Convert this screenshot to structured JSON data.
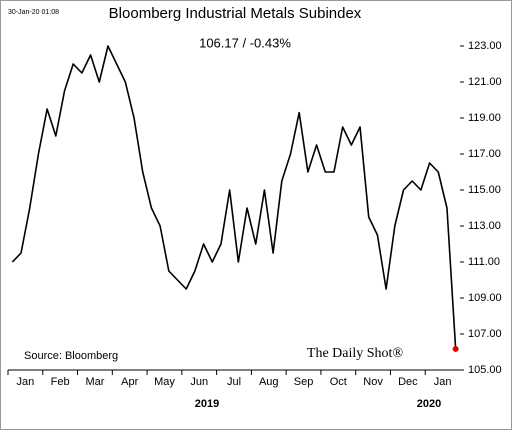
{
  "chart_data": {
    "type": "line",
    "title": "Bloomberg Industrial Metals Subindex",
    "timestamp": "30-Jan-20 01:08",
    "headline": "106.17  /  -0.43%",
    "source": "Source: Bloomberg",
    "brand": "The Daily Shot®",
    "year_labels": [
      "2019",
      "2020"
    ],
    "categories": [
      "Jan",
      null,
      null,
      null,
      "Feb",
      null,
      null,
      null,
      "Mar",
      null,
      null,
      null,
      "Apr",
      null,
      null,
      null,
      "May",
      null,
      null,
      null,
      "Jun",
      null,
      null,
      null,
      "Jul",
      null,
      null,
      null,
      "Aug",
      null,
      null,
      null,
      "Sep",
      null,
      null,
      null,
      "Oct",
      null,
      null,
      null,
      "Nov",
      null,
      null,
      null,
      "Dec",
      null,
      null,
      null,
      "Jan",
      null,
      null,
      null
    ],
    "series": [
      {
        "name": "Bloomberg Industrial Metals Subindex",
        "color": "#000000",
        "values": [
          111,
          111.5,
          114,
          117,
          119.5,
          118,
          120.5,
          122,
          121.5,
          122.5,
          121,
          123,
          122,
          121,
          119,
          116,
          114,
          113,
          110.5,
          110,
          109.5,
          110.5,
          112,
          111,
          112,
          115,
          111,
          114,
          112,
          115,
          111.5,
          115.5,
          117,
          119.3,
          116,
          117.5,
          116,
          116,
          118.5,
          117.5,
          118.5,
          113.5,
          112.5,
          109.5,
          113,
          115,
          115.5,
          115,
          116.5,
          116,
          114,
          106.17
        ]
      }
    ],
    "last_point_color": "#e00000",
    "ylim": [
      105,
      125
    ],
    "yticks": [
      {
        "value": 105,
        "label": "105.00"
      },
      {
        "value": 107,
        "label": "107.00"
      },
      {
        "value": 109,
        "label": "109.00"
      },
      {
        "value": 111,
        "label": "111.00"
      },
      {
        "value": 113,
        "label": "113.00"
      },
      {
        "value": 115,
        "label": "115.00"
      },
      {
        "value": 117,
        "label": "117.00"
      },
      {
        "value": 119,
        "label": "119.00"
      },
      {
        "value": 121,
        "label": "121.00"
      },
      {
        "value": 123,
        "label": "123.00"
      }
    ],
    "grid": false
  }
}
